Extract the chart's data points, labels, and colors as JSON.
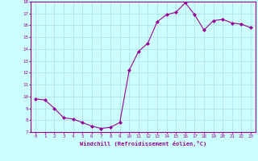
{
  "x": [
    0,
    1,
    2,
    3,
    4,
    5,
    6,
    7,
    8,
    9,
    10,
    11,
    12,
    13,
    14,
    15,
    16,
    17,
    18,
    19,
    20,
    21,
    22,
    23
  ],
  "y": [
    9.8,
    9.7,
    9.0,
    8.2,
    8.1,
    7.8,
    7.5,
    7.3,
    7.4,
    7.8,
    12.2,
    13.8,
    14.5,
    16.3,
    16.9,
    17.1,
    17.9,
    16.9,
    15.6,
    16.4,
    16.5,
    16.2,
    16.1,
    15.8
  ],
  "line_color": "#990099",
  "marker": "D",
  "marker_size": 2,
  "bg_color": "#ccffff",
  "grid_color": "#aadddd",
  "xlabel": "Windchill (Refroidissement éolien,°C)",
  "xlabel_color": "#990099",
  "tick_color": "#990099",
  "ylim": [
    7,
    18
  ],
  "xlim": [
    -0.5,
    23.5
  ],
  "yticks": [
    7,
    8,
    9,
    10,
    11,
    12,
    13,
    14,
    15,
    16,
    17,
    18
  ],
  "xticks": [
    0,
    1,
    2,
    3,
    4,
    5,
    6,
    7,
    8,
    9,
    10,
    11,
    12,
    13,
    14,
    15,
    16,
    17,
    18,
    19,
    20,
    21,
    22,
    23
  ]
}
